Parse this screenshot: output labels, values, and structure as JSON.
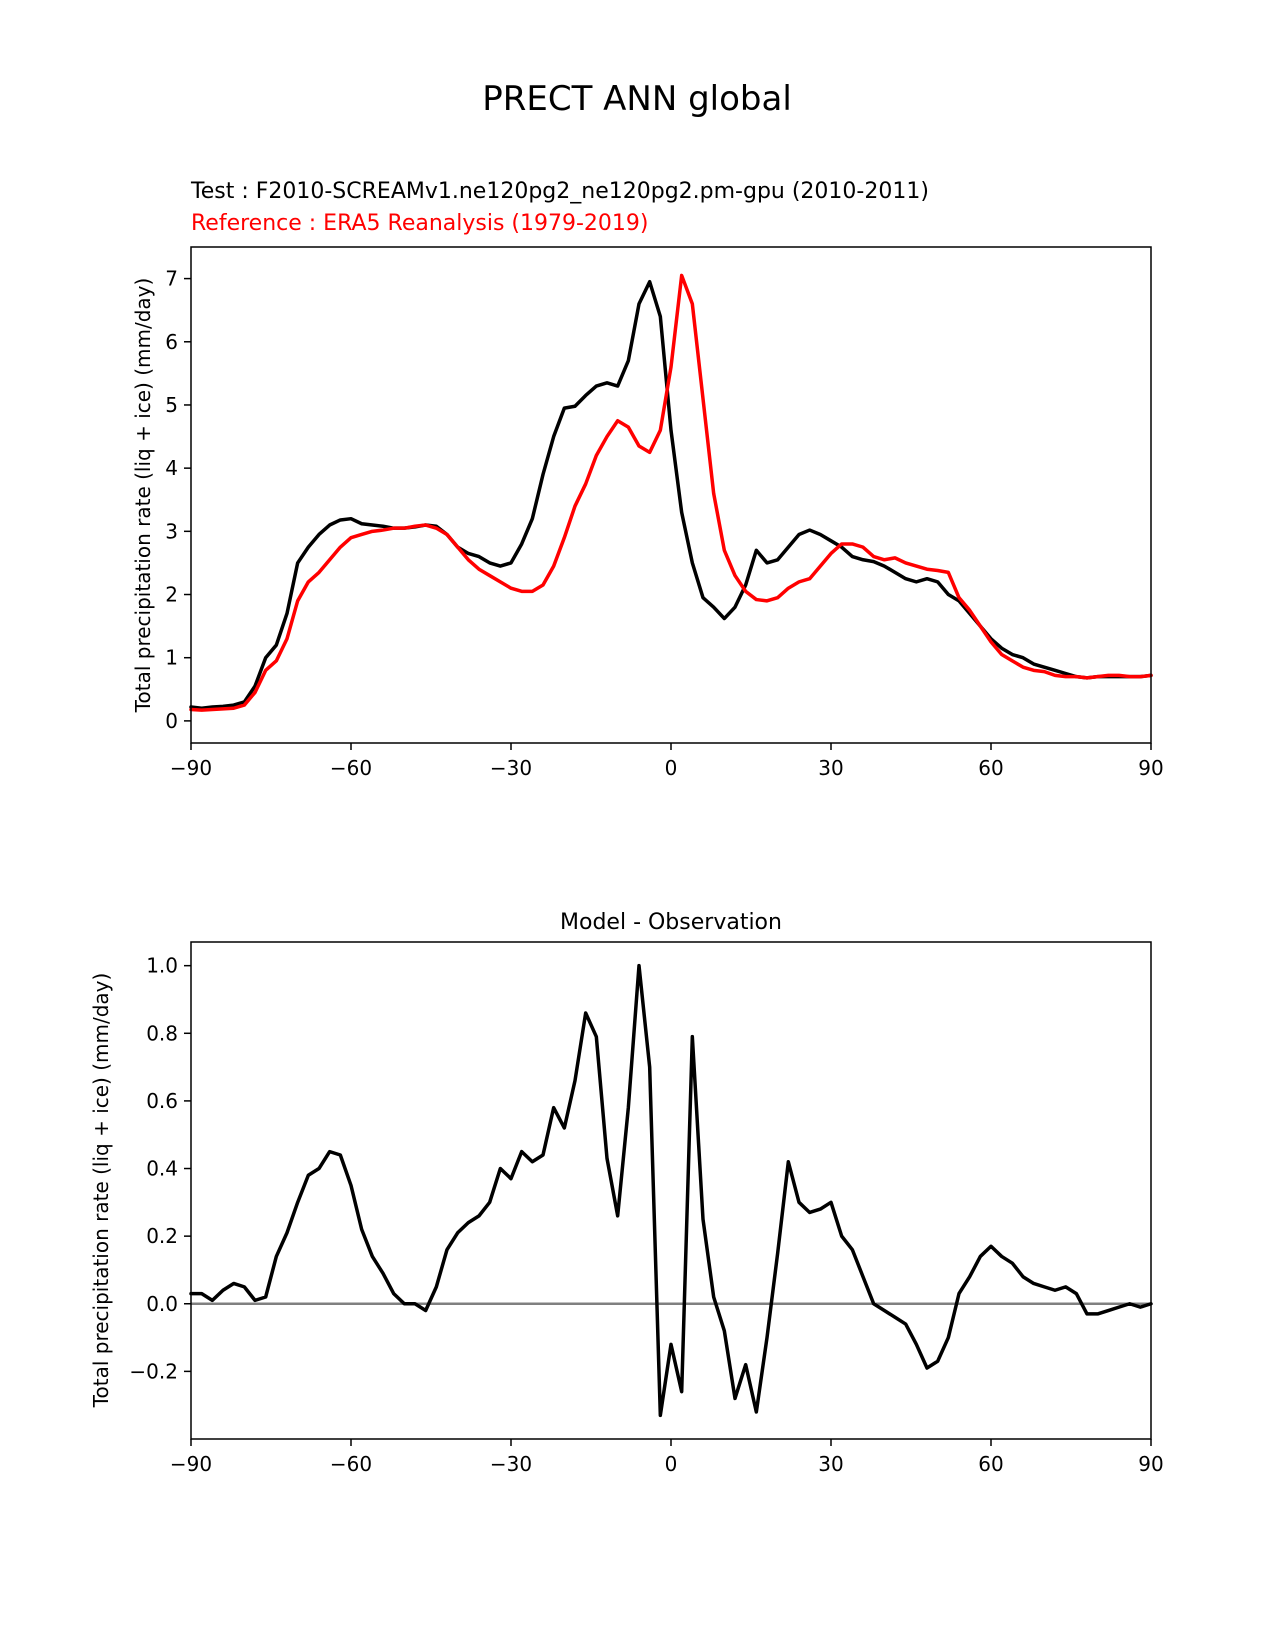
{
  "figure": {
    "suptitle": "PRECT ANN global"
  },
  "colors": {
    "test": "#000000",
    "reference": "#ff0000",
    "zero_line": "#808080"
  },
  "chart_data": [
    {
      "type": "line",
      "title_test": "Test : F2010-SCREAMv1.ne120pg2_ne120pg2.pm-gpu (2010-2011)",
      "title_reference": "Reference : ERA5 Reanalysis (1979-2019)",
      "xlabel": "",
      "ylabel": "Total precipitation rate (liq + ice) (mm/day)",
      "xlim": [
        -90,
        90
      ],
      "ylim": [
        -0.35,
        7.5
      ],
      "xticks": [
        -90,
        -60,
        -30,
        0,
        30,
        60,
        90
      ],
      "xtick_labels": [
        "−90",
        "−60",
        "−30",
        "0",
        "30",
        "60",
        "90"
      ],
      "yticks": [
        0,
        1,
        2,
        3,
        4,
        5,
        6,
        7
      ],
      "ytick_labels": [
        "0",
        "1",
        "2",
        "3",
        "4",
        "5",
        "6",
        "7"
      ],
      "series": [
        {
          "name": "Test",
          "x": [
            -90,
            -88,
            -86,
            -84,
            -82,
            -80,
            -78,
            -76,
            -74,
            -72,
            -70,
            -68,
            -66,
            -64,
            -62,
            -60,
            -58,
            -56,
            -54,
            -52,
            -50,
            -48,
            -46,
            -44,
            -42,
            -40,
            -38,
            -36,
            -34,
            -32,
            -30,
            -28,
            -26,
            -24,
            -22,
            -20,
            -18,
            -16,
            -14,
            -12,
            -10,
            -8,
            -6,
            -4,
            -2,
            0,
            2,
            4,
            6,
            8,
            10,
            12,
            14,
            16,
            18,
            20,
            22,
            24,
            26,
            28,
            30,
            32,
            34,
            36,
            38,
            40,
            42,
            44,
            46,
            48,
            50,
            52,
            54,
            56,
            58,
            60,
            62,
            64,
            66,
            68,
            70,
            72,
            74,
            76,
            78,
            80,
            82,
            84,
            86,
            88,
            90
          ],
          "values": [
            0.22,
            0.2,
            0.22,
            0.23,
            0.25,
            0.3,
            0.55,
            1.0,
            1.2,
            1.7,
            2.5,
            2.75,
            2.95,
            3.1,
            3.18,
            3.2,
            3.12,
            3.1,
            3.08,
            3.05,
            3.05,
            3.07,
            3.1,
            3.08,
            2.95,
            2.75,
            2.65,
            2.6,
            2.5,
            2.45,
            2.5,
            2.8,
            3.2,
            3.9,
            4.5,
            4.95,
            4.98,
            5.15,
            5.3,
            5.35,
            5.3,
            5.7,
            6.6,
            6.95,
            6.4,
            4.6,
            3.3,
            2.5,
            1.95,
            1.8,
            1.62,
            1.8,
            2.15,
            2.7,
            2.5,
            2.55,
            2.75,
            2.95,
            3.02,
            2.95,
            2.85,
            2.75,
            2.6,
            2.55,
            2.52,
            2.45,
            2.35,
            2.25,
            2.2,
            2.25,
            2.2,
            2.0,
            1.9,
            1.7,
            1.5,
            1.3,
            1.15,
            1.05,
            1.0,
            0.9,
            0.85,
            0.8,
            0.75,
            0.7,
            0.68,
            0.7,
            0.7,
            0.7,
            0.7,
            0.7,
            0.72
          ]
        },
        {
          "name": "Reference",
          "x": [
            -90,
            -88,
            -86,
            -84,
            -82,
            -80,
            -78,
            -76,
            -74,
            -72,
            -70,
            -68,
            -66,
            -64,
            -62,
            -60,
            -58,
            -56,
            -54,
            -52,
            -50,
            -48,
            -46,
            -44,
            -42,
            -40,
            -38,
            -36,
            -34,
            -32,
            -30,
            -28,
            -26,
            -24,
            -22,
            -20,
            -18,
            -16,
            -14,
            -12,
            -10,
            -8,
            -6,
            -4,
            -2,
            0,
            2,
            4,
            6,
            8,
            10,
            12,
            14,
            16,
            18,
            20,
            22,
            24,
            26,
            28,
            30,
            32,
            34,
            36,
            38,
            40,
            42,
            44,
            46,
            48,
            50,
            52,
            54,
            56,
            58,
            60,
            62,
            64,
            66,
            68,
            70,
            72,
            74,
            76,
            78,
            80,
            82,
            84,
            86,
            88,
            90
          ],
          "values": [
            0.18,
            0.17,
            0.18,
            0.19,
            0.2,
            0.25,
            0.45,
            0.8,
            0.95,
            1.3,
            1.9,
            2.2,
            2.35,
            2.55,
            2.75,
            2.9,
            2.95,
            3.0,
            3.02,
            3.05,
            3.05,
            3.08,
            3.1,
            3.05,
            2.95,
            2.75,
            2.55,
            2.4,
            2.3,
            2.2,
            2.1,
            2.05,
            2.05,
            2.15,
            2.45,
            2.9,
            3.4,
            3.75,
            4.2,
            4.5,
            4.75,
            4.65,
            4.35,
            4.25,
            4.6,
            5.6,
            7.05,
            6.6,
            5.1,
            3.6,
            2.7,
            2.3,
            2.05,
            1.92,
            1.9,
            1.95,
            2.1,
            2.2,
            2.25,
            2.45,
            2.65,
            2.8,
            2.8,
            2.75,
            2.6,
            2.55,
            2.58,
            2.5,
            2.45,
            2.4,
            2.38,
            2.35,
            1.95,
            1.75,
            1.5,
            1.25,
            1.05,
            0.95,
            0.85,
            0.8,
            0.78,
            0.72,
            0.7,
            0.7,
            0.68,
            0.7,
            0.72,
            0.72,
            0.7,
            0.7,
            0.72
          ]
        }
      ]
    },
    {
      "type": "line",
      "title": "Model - Observation",
      "xlabel": "",
      "ylabel": "Total precipitation rate (liq + ice) (mm/day)",
      "xlim": [
        -90,
        90
      ],
      "ylim": [
        -0.4,
        1.07
      ],
      "xticks": [
        -90,
        -60,
        -30,
        0,
        30,
        60,
        90
      ],
      "xtick_labels": [
        "−90",
        "−60",
        "−30",
        "0",
        "30",
        "60",
        "90"
      ],
      "yticks": [
        -0.2,
        0.0,
        0.2,
        0.4,
        0.6,
        0.8,
        1.0
      ],
      "ytick_labels": [
        "−0.2",
        "0.0",
        "0.2",
        "0.4",
        "0.6",
        "0.8",
        "1.0"
      ],
      "zero_line": 0,
      "series": [
        {
          "name": "Model - Observation",
          "x": [
            -90,
            -88,
            -86,
            -84,
            -82,
            -80,
            -78,
            -76,
            -74,
            -72,
            -70,
            -68,
            -66,
            -64,
            -62,
            -60,
            -58,
            -56,
            -54,
            -52,
            -50,
            -48,
            -46,
            -44,
            -42,
            -40,
            -38,
            -36,
            -34,
            -32,
            -30,
            -28,
            -26,
            -24,
            -22,
            -20,
            -18,
            -16,
            -14,
            -12,
            -10,
            -8,
            -6,
            -4,
            -2,
            0,
            2,
            4,
            6,
            8,
            10,
            12,
            14,
            16,
            18,
            20,
            22,
            24,
            26,
            28,
            30,
            32,
            34,
            36,
            38,
            40,
            42,
            44,
            46,
            48,
            50,
            52,
            54,
            56,
            58,
            60,
            62,
            64,
            66,
            68,
            70,
            72,
            74,
            76,
            78,
            80,
            82,
            84,
            86,
            88,
            90
          ],
          "values": [
            0.03,
            0.03,
            0.01,
            0.04,
            0.06,
            0.05,
            0.01,
            0.02,
            0.14,
            0.21,
            0.3,
            0.38,
            0.4,
            0.45,
            0.44,
            0.35,
            0.22,
            0.14,
            0.09,
            0.03,
            0.0,
            0.0,
            -0.02,
            0.05,
            0.16,
            0.21,
            0.24,
            0.26,
            0.3,
            0.4,
            0.37,
            0.45,
            0.42,
            0.44,
            0.58,
            0.52,
            0.66,
            0.86,
            0.79,
            0.43,
            0.26,
            0.58,
            1.0,
            0.7,
            -0.33,
            -0.12,
            -0.26,
            0.79,
            0.25,
            0.02,
            -0.08,
            -0.28,
            -0.18,
            -0.32,
            -0.1,
            0.15,
            0.42,
            0.3,
            0.27,
            0.28,
            0.3,
            0.2,
            0.16,
            0.08,
            0.0,
            -0.02,
            -0.04,
            -0.06,
            -0.12,
            -0.19,
            -0.17,
            -0.1,
            0.03,
            0.08,
            0.14,
            0.17,
            0.14,
            0.12,
            0.08,
            0.06,
            0.05,
            0.04,
            0.05,
            0.03,
            -0.03,
            -0.03,
            -0.02,
            -0.01,
            0.0,
            -0.01,
            0.0
          ]
        }
      ]
    }
  ]
}
